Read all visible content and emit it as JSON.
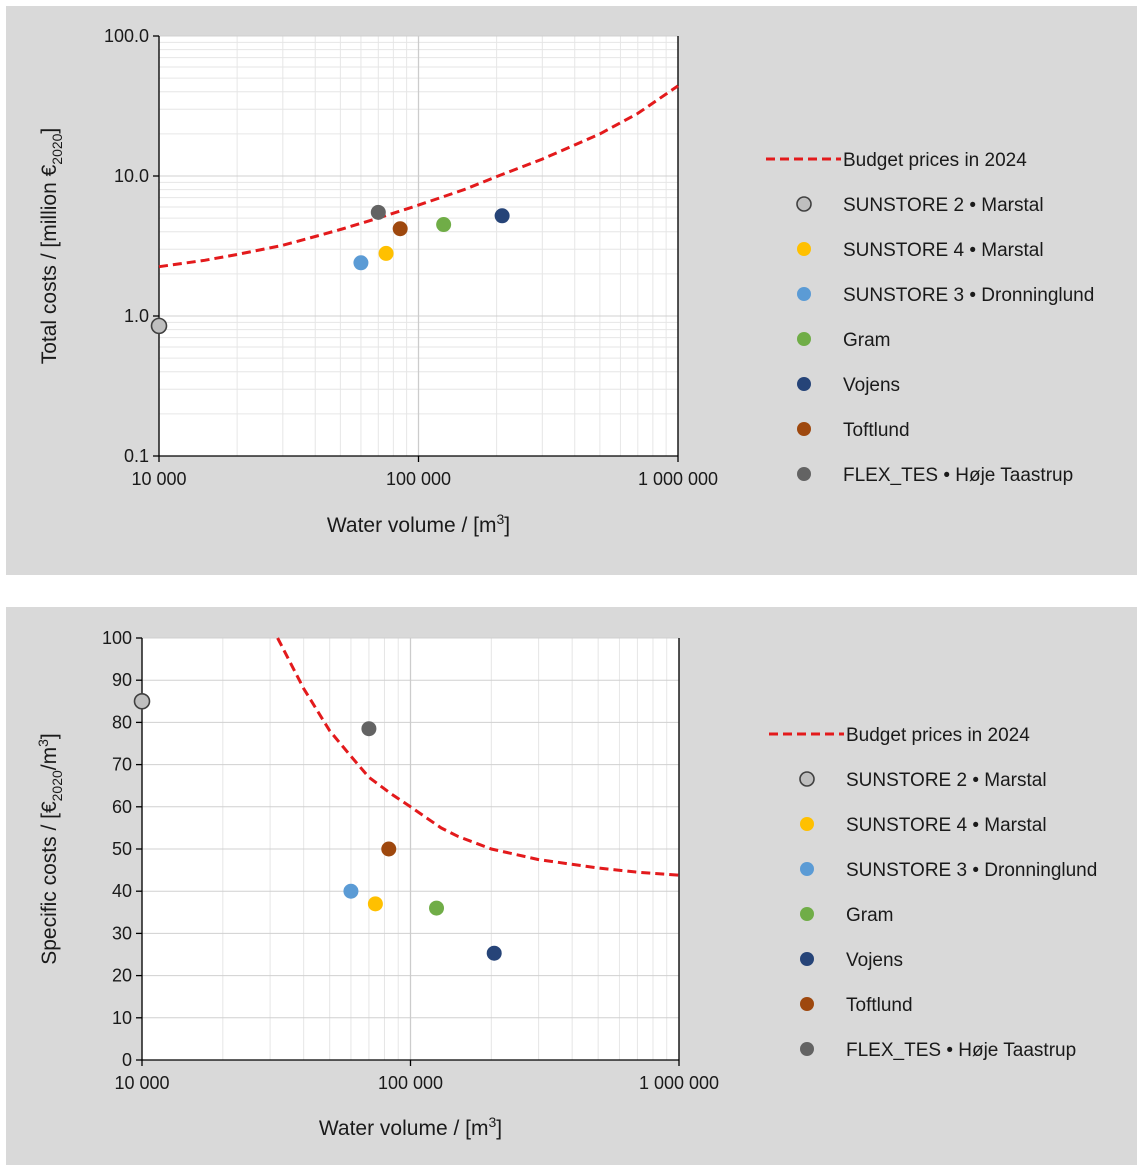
{
  "chart_data": [
    {
      "type": "scatter",
      "xlabel": "Water volume / [m",
      "xlabel_sup": "3",
      "xlabel_end": "]",
      "ylabel": "Total costs / [million €",
      "ylabel_sub": "2020",
      "ylabel_end": "]",
      "x_scale": "log",
      "y_scale": "log",
      "xlim": [
        10000,
        1000000
      ],
      "ylim": [
        0.1,
        100
      ],
      "x_ticks": [
        10000,
        100000,
        1000000
      ],
      "x_tick_labels": [
        "10 000",
        "100 000",
        "1 000 000"
      ],
      "y_ticks": [
        0.1,
        1,
        10,
        100
      ],
      "y_tick_labels": [
        "0.1",
        "1.0",
        "10.0",
        "100.0"
      ],
      "grid": true,
      "legend_position": "right",
      "curve": {
        "name": "Budget prices in 2024",
        "style": "dashed",
        "color": "#e31a1c",
        "x": [
          10000,
          15000,
          20000,
          30000,
          40000,
          50000,
          70000,
          100000,
          150000,
          200000,
          300000,
          500000,
          700000,
          1000000
        ],
        "y": [
          2.25,
          2.5,
          2.75,
          3.2,
          3.7,
          4.15,
          5.0,
          6.2,
          8.0,
          9.9,
          13.2,
          20.0,
          28.0,
          44.0
        ]
      },
      "series": [
        {
          "name": "SUNSTORE 2 • Marstal",
          "color": "#bfbfbf",
          "outline": "#404040",
          "x": [
            10000
          ],
          "y": [
            0.85
          ]
        },
        {
          "name": "SUNSTORE 4 • Marstal",
          "color": "#ffc000",
          "x": [
            75000
          ],
          "y": [
            2.8
          ]
        },
        {
          "name": "SUNSTORE 3 • Dronninglund",
          "color": "#5b9bd5",
          "x": [
            60000
          ],
          "y": [
            2.4
          ]
        },
        {
          "name": "Gram",
          "color": "#70ad47",
          "x": [
            125000
          ],
          "y": [
            4.5
          ]
        },
        {
          "name": "Vojens",
          "color": "#264478",
          "x": [
            210000
          ],
          "y": [
            5.2
          ]
        },
        {
          "name": "Toftlund",
          "color": "#9e480e",
          "x": [
            85000
          ],
          "y": [
            4.2
          ]
        },
        {
          "name": "FLEX_TES • Høje Taastrup",
          "color": "#636363",
          "x": [
            70000
          ],
          "y": [
            5.5
          ]
        }
      ]
    },
    {
      "type": "scatter",
      "xlabel": "Water volume / [m",
      "xlabel_sup": "3",
      "xlabel_end": "]",
      "ylabel": "Specific costs / [€",
      "ylabel_sub": "2020",
      "ylabel_end": "/m",
      "ylabel_sup": "3",
      "ylabel_close": "]",
      "x_scale": "log",
      "y_scale": "linear",
      "xlim": [
        10000,
        1000000
      ],
      "ylim": [
        0,
        100
      ],
      "x_ticks": [
        10000,
        100000,
        1000000
      ],
      "x_tick_labels": [
        "10 000",
        "100 000",
        "1 000 000"
      ],
      "y_ticks": [
        0,
        10,
        20,
        30,
        40,
        50,
        60,
        70,
        80,
        90,
        100
      ],
      "y_tick_labels": [
        "0",
        "10",
        "20",
        "30",
        "40",
        "50",
        "60",
        "70",
        "80",
        "90",
        "100"
      ],
      "grid": true,
      "legend_position": "right",
      "curve": {
        "name": "Budget prices in 2024",
        "style": "dashed",
        "color": "#e31a1c",
        "x": [
          32000,
          40000,
          50000,
          60000,
          70000,
          85000,
          100000,
          130000,
          150000,
          200000,
          300000,
          500000,
          700000,
          1000000
        ],
        "y": [
          100,
          88,
          78,
          72,
          67,
          63,
          60,
          55,
          53,
          50,
          47.5,
          45.5,
          44.5,
          43.8
        ]
      },
      "series": [
        {
          "name": "SUNSTORE 2 • Marstal",
          "color": "#bfbfbf",
          "outline": "#404040",
          "x": [
            10000
          ],
          "y": [
            85
          ]
        },
        {
          "name": "SUNSTORE 4 • Marstal",
          "color": "#ffc000",
          "x": [
            74000
          ],
          "y": [
            37
          ]
        },
        {
          "name": "SUNSTORE 3 • Dronninglund",
          "color": "#5b9bd5",
          "x": [
            60000
          ],
          "y": [
            40
          ]
        },
        {
          "name": "Gram",
          "color": "#70ad47",
          "x": [
            125000
          ],
          "y": [
            36
          ]
        },
        {
          "name": "Vojens",
          "color": "#264478",
          "x": [
            205000
          ],
          "y": [
            25.3
          ]
        },
        {
          "name": "Toftlund",
          "color": "#9e480e",
          "x": [
            83000
          ],
          "y": [
            50
          ]
        },
        {
          "name": "FLEX_TES • Høje Taastrup",
          "color": "#636363",
          "x": [
            70000
          ],
          "y": [
            78.5
          ]
        }
      ]
    }
  ]
}
